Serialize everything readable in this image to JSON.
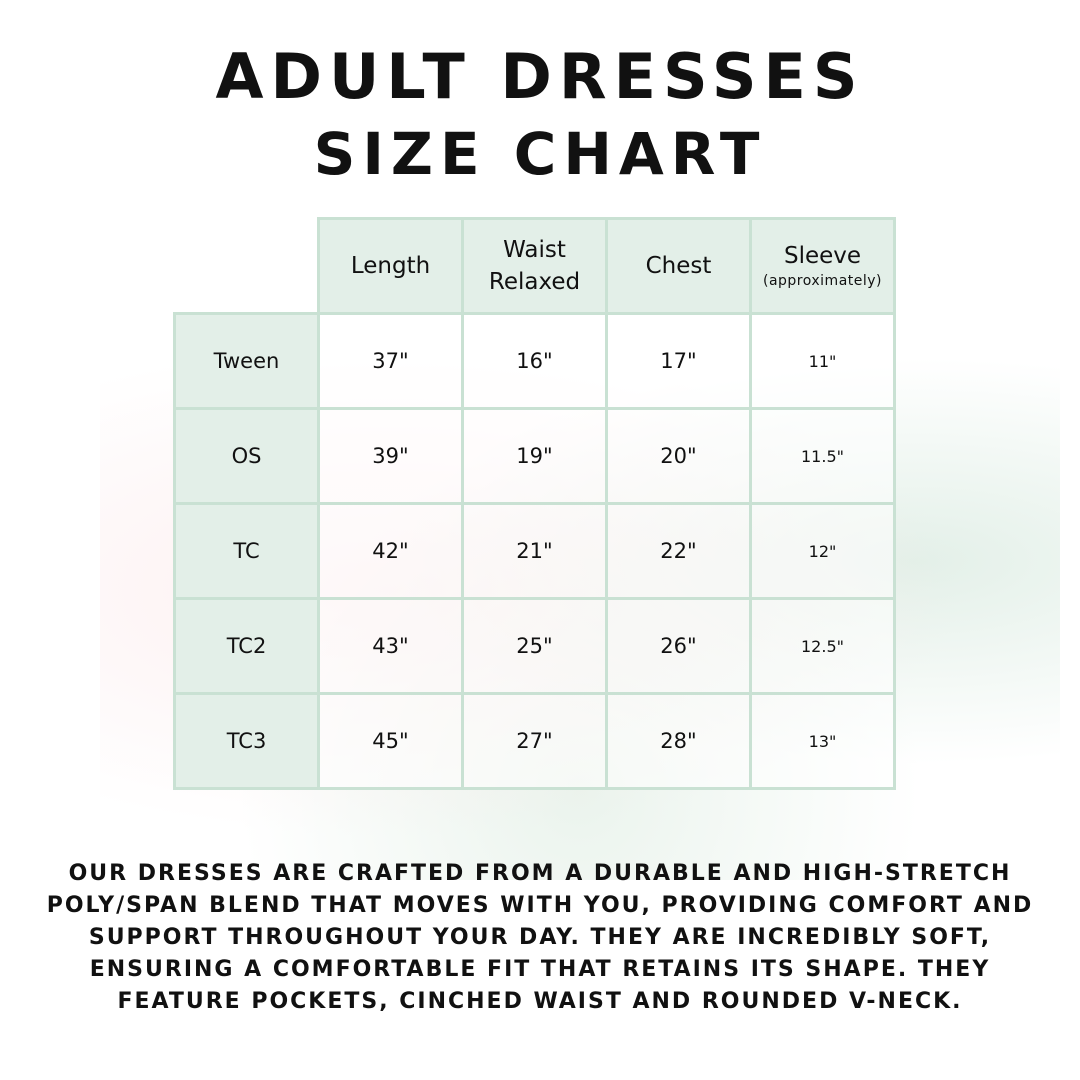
{
  "title_line1": "ADULT DRESSES",
  "title_line2": "SIZE CHART",
  "columns": [
    {
      "label": "Length"
    },
    {
      "label": "Waist Relaxed"
    },
    {
      "label": "Chest"
    },
    {
      "label": "Sleeve",
      "note": "(approximately)"
    }
  ],
  "rows": [
    {
      "size": "Tween",
      "values": [
        "37\"",
        "16\"",
        "17\"",
        "11\""
      ]
    },
    {
      "size": "OS",
      "values": [
        "39\"",
        "19\"",
        "20\"",
        "11.5\""
      ]
    },
    {
      "size": "TC",
      "values": [
        "42\"",
        "21\"",
        "22\"",
        "12\""
      ]
    },
    {
      "size": "TC2",
      "values": [
        "43\"",
        "25\"",
        "26\"",
        "12.5\""
      ]
    },
    {
      "size": "TC3",
      "values": [
        "45\"",
        "27\"",
        "28\"",
        "13\""
      ]
    }
  ],
  "description": "Our dresses are crafted from a durable and high-stretch poly/span blend that moves with you, providing comfort and support throughout your day. They are incredibly soft, ensuring a comfortable fit that retains its shape. They feature pockets, cinched waist and rounded v-neck.",
  "colors": {
    "header_bg": "#e3efe8",
    "border": "#c9e1d3"
  }
}
